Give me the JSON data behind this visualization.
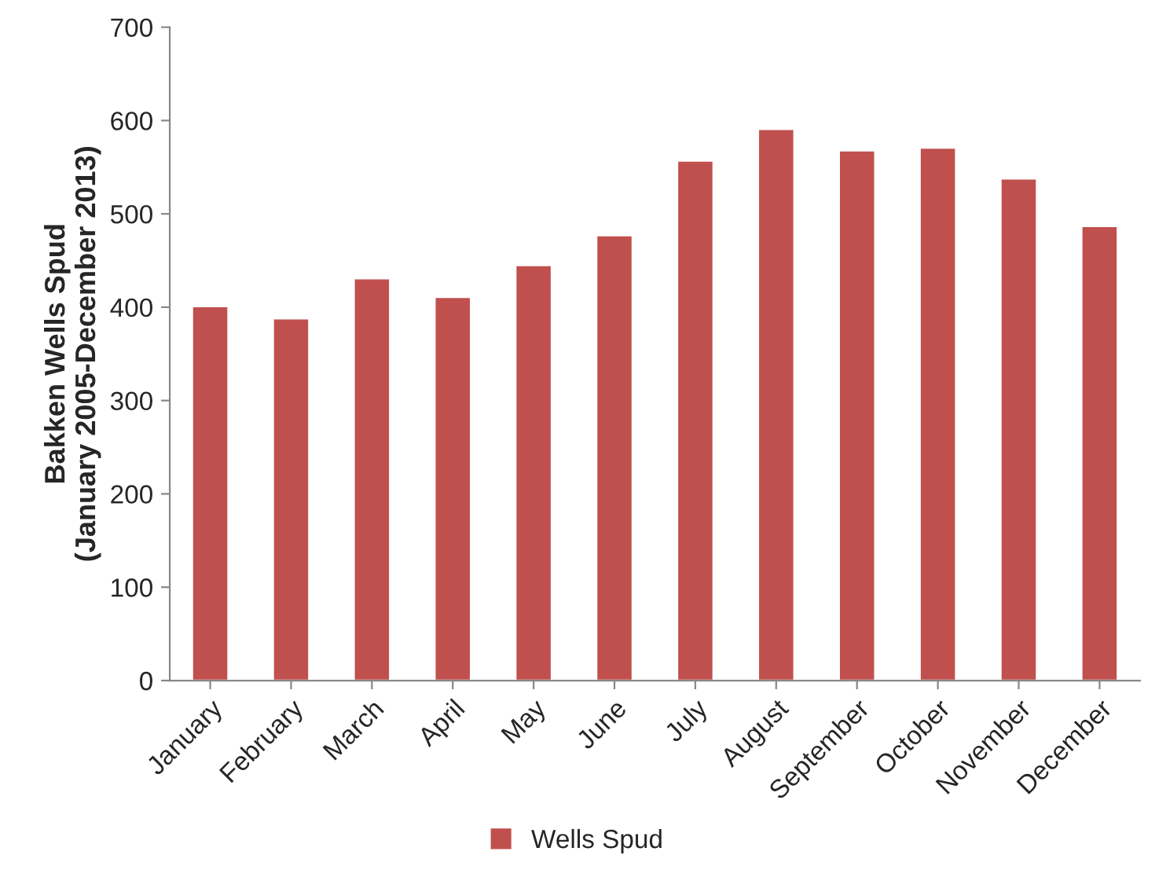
{
  "chart_data": {
    "type": "bar",
    "ylabel": "Bakken Wells Spud\n(January 2005-December 2013)",
    "categories": [
      "January",
      "February",
      "March",
      "April",
      "May",
      "June",
      "July",
      "August",
      "September",
      "October",
      "November",
      "December"
    ],
    "series": [
      {
        "name": "Wells Spud",
        "color": "#c0504d",
        "values": [
          401,
          388,
          431,
          411,
          445,
          477,
          557,
          591,
          568,
          571,
          538,
          487
        ]
      }
    ],
    "ylim": [
      0,
      700
    ],
    "yticks": [
      0,
      100,
      200,
      300,
      400,
      500,
      600,
      700
    ],
    "grid": false,
    "legend": "bottom"
  }
}
